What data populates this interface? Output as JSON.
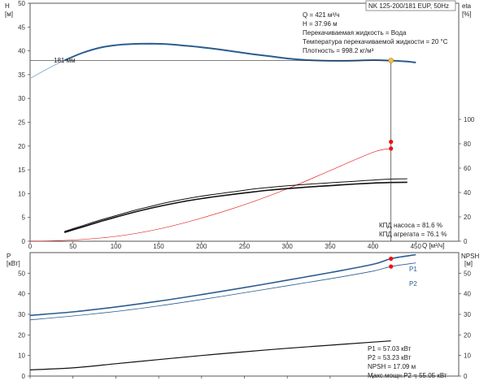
{
  "chart_data": [
    {
      "type": "line",
      "title": "NK 125-200/181 EUP, 50Hz",
      "xlabel": "Q [м³/ч]",
      "ylabel_left": "H\n[м]",
      "ylabel_right": "eta\n[%]",
      "xlim": [
        0,
        450
      ],
      "ylim_left": [
        0,
        50
      ],
      "ylim_right": [
        0,
        100
      ],
      "x_ticks": [
        0,
        50,
        100,
        150,
        200,
        250,
        300,
        350,
        400,
        450
      ],
      "y_ticks_left": [
        0,
        5,
        10,
        15,
        20,
        25,
        30,
        35,
        40,
        45,
        50
      ],
      "y_ticks_right": [
        0,
        20,
        40,
        60,
        80,
        100
      ],
      "grid": false,
      "impeller_label": "181 мм",
      "series": [
        {
          "kind": "H",
          "axis": "left",
          "color": "#2a5d8f",
          "x": [
            40,
            60,
            80,
            100,
            120,
            140,
            160,
            180,
            200,
            220,
            240,
            260,
            280,
            300,
            320,
            340,
            360,
            380,
            400,
            420,
            440,
            450
          ],
          "y": [
            38.0,
            39.5,
            40.6,
            41.2,
            41.45,
            41.5,
            41.4,
            41.1,
            40.75,
            40.3,
            39.8,
            39.3,
            38.85,
            38.4,
            38.1,
            37.95,
            37.9,
            37.95,
            38.05,
            37.96,
            37.75,
            37.55
          ]
        },
        {
          "kind": "H-dashed",
          "axis": "left",
          "color": "#8fb0d8",
          "x": [
            0,
            20,
            40
          ],
          "y": [
            34.2,
            36.2,
            38.0
          ]
        },
        {
          "kind": "P2-eta",
          "axis": "right",
          "color": "#dd0000",
          "width": 0.6,
          "x": [
            0,
            50,
            100,
            150,
            200,
            250,
            300,
            350,
            400,
            420
          ],
          "y": [
            0,
            1,
            4,
            10,
            19,
            30,
            43,
            58,
            73,
            76
          ]
        },
        {
          "name": "",
          "axis": "right",
          "color": "#111111",
          "width": 1.0,
          "x": [
            40,
            60,
            80,
            100,
            120,
            140,
            160,
            180,
            200,
            220,
            240,
            260,
            280,
            300,
            320,
            340,
            360,
            380,
            400,
            420,
            440
          ],
          "y": [
            8,
            12.5,
            17,
            21,
            25,
            28.5,
            31.8,
            34.6,
            37,
            39,
            40.9,
            42.8,
            44.3,
            45.5,
            46.6,
            47.5,
            48.4,
            49.3,
            50.2,
            51,
            51.3
          ]
        },
        {
          "name": "",
          "axis": "right",
          "color": "#111111",
          "width": 1.6,
          "x": [
            40,
            60,
            80,
            100,
            120,
            140,
            160,
            180,
            200,
            220,
            240,
            260,
            280,
            300,
            320,
            340,
            360,
            380,
            400,
            420,
            440
          ],
          "y": [
            7.2,
            11.5,
            15.8,
            19.8,
            23.6,
            27,
            30,
            32.7,
            35,
            37,
            38.8,
            40.5,
            42,
            43.2,
            44.3,
            45.2,
            46.1,
            47,
            47.7,
            48.2,
            48.4
          ]
        }
      ],
      "duty_point": {
        "x": 421,
        "y_left": 37.96,
        "eta_pump": 81.6,
        "eta_total": 76.1
      },
      "annotations": [
        "Q = 421 м³/ч",
        "H = 37.96 м",
        "Перекачиваемая жидкость = Вода",
        "Температура перекачиваемой жидкости = 20 °C",
        "Плотность = 998.2 кг/м³"
      ],
      "eff_annotations": [
        "КПД насоса = 81.6 %",
        "КПД агрегата = 76.1 %"
      ]
    },
    {
      "type": "line",
      "ylabel_left": "P\n[кВт]",
      "ylabel_right": "NPSH\n[м]",
      "xlim": [
        0,
        450
      ],
      "ylim_left": [
        0,
        60
      ],
      "ylim_right": [
        0,
        60
      ],
      "y_ticks_left": [
        0,
        10,
        20,
        30,
        40,
        50
      ],
      "y_ticks_right": [
        0,
        10,
        20,
        30,
        40,
        50
      ],
      "series": [
        {
          "name": "P1",
          "axis": "left",
          "color": "#2a5d8f",
          "width": 1.6,
          "x": [
            0,
            50,
            100,
            150,
            200,
            250,
            300,
            350,
            400,
            421,
            450
          ],
          "y": [
            29.5,
            31.2,
            33.6,
            36.4,
            39.6,
            43,
            46.6,
            50.3,
            54.3,
            57.03,
            59
          ]
        },
        {
          "name": "P2",
          "axis": "left",
          "color": "#2a5d8f",
          "width": 0.8,
          "x": [
            0,
            50,
            100,
            150,
            200,
            250,
            300,
            350,
            400,
            421,
            450
          ],
          "y": [
            27.3,
            29.2,
            31.4,
            34.1,
            37.2,
            40.5,
            43.9,
            47.3,
            51,
            53.23,
            55
          ]
        },
        {
          "name": "NPSH",
          "axis": "right",
          "color": "#111111",
          "width": 1.2,
          "x": [
            0,
            50,
            100,
            150,
            200,
            250,
            300,
            350,
            400,
            421
          ],
          "y": [
            3,
            4,
            6,
            8,
            10,
            11.8,
            13.5,
            15,
            16.5,
            17.09
          ]
        }
      ],
      "duty_points": [
        {
          "x": 421,
          "y": 57.03
        },
        {
          "x": 421,
          "y": 53.23
        }
      ],
      "annotations": [
        "P1 = 57.03 кВт",
        "P2 = 53.23 кВт",
        "NPSH = 17.09 м",
        "Макс.мощн.P2 = 55.05 кВт"
      ]
    }
  ]
}
